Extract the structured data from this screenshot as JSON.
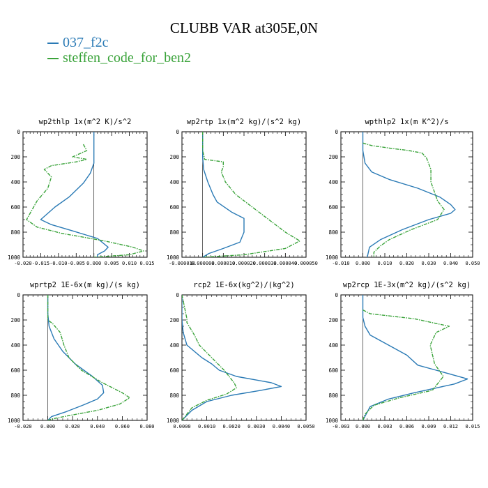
{
  "figure": {
    "title": "CLUBB VAR at305E,0N",
    "legend": [
      {
        "label": "037_f2c",
        "color": "#2a7ab5"
      },
      {
        "label": "steffen_code_for_ben2",
        "color": "#3aa33a"
      }
    ]
  },
  "chart_data": [
    {
      "type": "line",
      "title": "wp2thlp   1x(m^2 K)/s^2",
      "xlim": [
        -0.02,
        0.015
      ],
      "ylim": [
        1000,
        0
      ],
      "y_reversed": true,
      "xticks": [
        "-0.020",
        "-0.015",
        "-0.010",
        "-0.005",
        "0.000",
        "0.005",
        "0.010",
        "0.015"
      ],
      "xtick_values": [
        -0.02,
        -0.015,
        -0.01,
        -0.005,
        0.0,
        0.005,
        0.01,
        0.015
      ],
      "yticks": [
        "0",
        "200",
        "400",
        "600",
        "800",
        "1000"
      ],
      "ytick_values": [
        0,
        200,
        400,
        600,
        800,
        1000
      ],
      "series": [
        {
          "name": "037_f2c",
          "color": "#2a7ab5",
          "style": "solid",
          "points": [
            [
              0,
              0
            ],
            [
              0,
              100
            ],
            [
              0,
              250
            ],
            [
              -0.001,
              330
            ],
            [
              -0.003,
              410
            ],
            [
              -0.007,
              520
            ],
            [
              -0.011,
              600
            ],
            [
              -0.015,
              700
            ],
            [
              -0.012,
              740
            ],
            [
              -0.006,
              790
            ],
            [
              0.001,
              850
            ],
            [
              0.004,
              920
            ],
            [
              0.003,
              950
            ],
            [
              0.001,
              980
            ],
            [
              0.001,
              1000
            ]
          ]
        },
        {
          "name": "steffen_code_for_ben2",
          "color": "#3aa33a",
          "style": "dash",
          "points": [
            [
              -0.003,
              100
            ],
            [
              -0.002,
              150
            ],
            [
              -0.006,
              200
            ],
            [
              -0.002,
              220
            ],
            [
              -0.005,
              240
            ],
            [
              -0.012,
              270
            ],
            [
              -0.014,
              300
            ],
            [
              -0.012,
              360
            ],
            [
              -0.013,
              450
            ],
            [
              -0.016,
              550
            ],
            [
              -0.019,
              700
            ],
            [
              -0.016,
              760
            ],
            [
              -0.009,
              810
            ],
            [
              0.003,
              870
            ],
            [
              0.011,
              920
            ],
            [
              0.014,
              950
            ],
            [
              0.01,
              980
            ],
            [
              0,
              1000
            ]
          ]
        }
      ]
    },
    {
      "type": "line",
      "title": "wp2rtp   1x(m^2 kg)/(s^2 kg)",
      "xlim": [
        -1e-05,
        5e-05
      ],
      "ylim": [
        1000,
        0
      ],
      "y_reversed": true,
      "xticks": [
        "-0.000010",
        "0.000000",
        "0.000010",
        "0.000020",
        "0.000030",
        "0.000040",
        "0.000050"
      ],
      "xtick_values": [
        -1e-05,
        0.0,
        1e-05,
        2e-05,
        3e-05,
        4e-05,
        5e-05
      ],
      "yticks": [
        "0",
        "200",
        "400",
        "600",
        "800",
        "1000"
      ],
      "ytick_values": [
        0,
        200,
        400,
        600,
        800,
        1000
      ],
      "series": [
        {
          "name": "037_f2c",
          "color": "#2a7ab5",
          "style": "solid",
          "points": [
            [
              0.0,
              0
            ],
            [
              0.0,
              200
            ],
            [
              5e-07,
              300
            ],
            [
              2.5e-06,
              400
            ],
            [
              5e-06,
              500
            ],
            [
              7e-06,
              560
            ],
            [
              1.4e-05,
              640
            ],
            [
              2e-05,
              690
            ],
            [
              2e-05,
              800
            ],
            [
              1.8e-05,
              880
            ],
            [
              1e-05,
              930
            ],
            [
              3e-06,
              970
            ],
            [
              0.0,
              1000
            ]
          ]
        },
        {
          "name": "steffen_code_for_ben2",
          "color": "#3aa33a",
          "style": "dash",
          "points": [
            [
              0.0,
              0
            ],
            [
              0.0,
              150
            ],
            [
              1e-06,
              220
            ],
            [
              1e-05,
              240
            ],
            [
              1e-05,
              280
            ],
            [
              9e-06,
              320
            ],
            [
              1.1e-05,
              400
            ],
            [
              1.6e-05,
              500
            ],
            [
              2.8e-05,
              650
            ],
            [
              4e-05,
              800
            ],
            [
              4.7e-05,
              870
            ],
            [
              4e-05,
              930
            ],
            [
              2e-05,
              980
            ],
            [
              0.0,
              1000
            ]
          ]
        }
      ]
    },
    {
      "type": "line",
      "title": "wpthlp2   1x(m K^2)/s",
      "xlim": [
        -0.01,
        0.05
      ],
      "ylim": [
        1000,
        0
      ],
      "y_reversed": true,
      "xticks": [
        "-0.010",
        "0.000",
        "0.010",
        "0.020",
        "0.030",
        "0.040",
        "0.050"
      ],
      "xtick_values": [
        -0.01,
        0.0,
        0.01,
        0.02,
        0.03,
        0.04,
        0.05
      ],
      "yticks": [
        "0",
        "200",
        "400",
        "600",
        "800",
        "1000"
      ],
      "ytick_values": [
        0,
        200,
        400,
        600,
        800,
        1000
      ],
      "series": [
        {
          "name": "037_f2c",
          "color": "#2a7ab5",
          "style": "solid",
          "points": [
            [
              0,
              0
            ],
            [
              0,
              150
            ],
            [
              0.001,
              250
            ],
            [
              0.004,
              320
            ],
            [
              0.012,
              380
            ],
            [
              0.025,
              450
            ],
            [
              0.035,
              520
            ],
            [
              0.04,
              580
            ],
            [
              0.042,
              620
            ],
            [
              0.04,
              650
            ],
            [
              0.03,
              700
            ],
            [
              0.018,
              780
            ],
            [
              0.008,
              860
            ],
            [
              0.003,
              920
            ],
            [
              0.002,
              1000
            ]
          ]
        },
        {
          "name": "steffen_code_for_ben2",
          "color": "#3aa33a",
          "style": "dash",
          "points": [
            [
              0,
              90
            ],
            [
              0.004,
              110
            ],
            [
              0.012,
              130
            ],
            [
              0.021,
              150
            ],
            [
              0.027,
              170
            ],
            [
              0.029,
              210
            ],
            [
              0.031,
              300
            ],
            [
              0.031,
              400
            ],
            [
              0.034,
              550
            ],
            [
              0.037,
              620
            ],
            [
              0.034,
              700
            ],
            [
              0.022,
              780
            ],
            [
              0.012,
              860
            ],
            [
              0.008,
              910
            ],
            [
              0.005,
              960
            ],
            [
              0.005,
              1000
            ]
          ]
        }
      ]
    },
    {
      "type": "line",
      "title": "wprtp2   1E-6x(m kg)/(s kg)",
      "xlim": [
        -0.02,
        0.08
      ],
      "ylim": [
        1000,
        0
      ],
      "y_reversed": true,
      "xticks": [
        "-0.020",
        "0.000",
        "0.020",
        "0.040",
        "0.060",
        "0.080"
      ],
      "xtick_values": [
        -0.02,
        0.0,
        0.02,
        0.04,
        0.06,
        0.08
      ],
      "yticks": [
        "0",
        "200",
        "400",
        "600",
        "800",
        "1000"
      ],
      "ytick_values": [
        0,
        200,
        400,
        600,
        800,
        1000
      ],
      "series": [
        {
          "name": "037_f2c",
          "color": "#2a7ab5",
          "style": "solid",
          "points": [
            [
              0,
              0
            ],
            [
              0,
              150
            ],
            [
              0.001,
              250
            ],
            [
              0.005,
              350
            ],
            [
              0.012,
              450
            ],
            [
              0.022,
              550
            ],
            [
              0.036,
              650
            ],
            [
              0.044,
              720
            ],
            [
              0.045,
              780
            ],
            [
              0.04,
              830
            ],
            [
              0.028,
              880
            ],
            [
              0.015,
              930
            ],
            [
              0.003,
              970
            ],
            [
              0,
              1000
            ]
          ]
        },
        {
          "name": "steffen_code_for_ben2",
          "color": "#3aa33a",
          "style": "dash",
          "points": [
            [
              0,
              0
            ],
            [
              0,
              200
            ],
            [
              0.004,
              230
            ],
            [
              0.01,
              300
            ],
            [
              0.013,
              400
            ],
            [
              0.017,
              500
            ],
            [
              0.027,
              600
            ],
            [
              0.044,
              700
            ],
            [
              0.06,
              780
            ],
            [
              0.066,
              820
            ],
            [
              0.058,
              870
            ],
            [
              0.04,
              920
            ],
            [
              0.018,
              960
            ],
            [
              0.003,
              990
            ],
            [
              0,
              1000
            ]
          ]
        }
      ]
    },
    {
      "type": "line",
      "title": "rcp2   1E-6x(kg^2)/(kg^2)",
      "xlim": [
        0.0,
        0.005
      ],
      "ylim": [
        1000,
        0
      ],
      "y_reversed": true,
      "xticks": [
        "0.0000",
        "0.0010",
        "0.0020",
        "0.0030",
        "0.0040",
        "0.0050"
      ],
      "xtick_values": [
        0.0,
        0.001,
        0.002,
        0.003,
        0.004,
        0.005
      ],
      "yticks": [
        "0",
        "200",
        "400",
        "600",
        "800",
        "1000"
      ],
      "ytick_values": [
        0,
        200,
        400,
        600,
        800,
        1000
      ],
      "series": [
        {
          "name": "037_f2c",
          "color": "#2a7ab5",
          "style": "solid",
          "points": [
            [
              0,
              0
            ],
            [
              0,
              200
            ],
            [
              5e-05,
              300
            ],
            [
              0.0002,
              400
            ],
            [
              0.0008,
              500
            ],
            [
              0.0012,
              550
            ],
            [
              0.0015,
              600
            ],
            [
              0.0022,
              650
            ],
            [
              0.0036,
              700
            ],
            [
              0.004,
              730
            ],
            [
              0.0032,
              760
            ],
            [
              0.002,
              800
            ],
            [
              0.001,
              850
            ],
            [
              0.0004,
              920
            ],
            [
              0,
              1000
            ]
          ]
        },
        {
          "name": "steffen_code_for_ben2",
          "color": "#3aa33a",
          "style": "dash",
          "points": [
            [
              0,
              0
            ],
            [
              0.0002,
              190
            ],
            [
              0.0002,
              220
            ],
            [
              0.0005,
              320
            ],
            [
              0.0007,
              400
            ],
            [
              0.0012,
              500
            ],
            [
              0.0017,
              600
            ],
            [
              0.0021,
              700
            ],
            [
              0.0022,
              740
            ],
            [
              0.0018,
              790
            ],
            [
              0.001,
              840
            ],
            [
              0.0004,
              900
            ],
            [
              0,
              1000
            ]
          ]
        }
      ]
    },
    {
      "type": "line",
      "title": "wp2rcp   1E-3x(m^2 kg)/(s^2 kg)",
      "xlim": [
        -0.003,
        0.015
      ],
      "ylim": [
        1000,
        0
      ],
      "y_reversed": true,
      "xticks": [
        "-0.003",
        "0.000",
        "0.003",
        "0.006",
        "0.009",
        "0.012",
        "0.015"
      ],
      "xtick_values": [
        -0.003,
        0.0,
        0.003,
        0.006,
        0.009,
        0.012,
        0.015
      ],
      "yticks": [
        "0",
        "200",
        "400",
        "600",
        "800",
        "1000"
      ],
      "ytick_values": [
        0,
        200,
        400,
        600,
        800,
        1000
      ],
      "series": [
        {
          "name": "037_f2c",
          "color": "#2a7ab5",
          "style": "solid",
          "points": [
            [
              0,
              0
            ],
            [
              0,
              180
            ],
            [
              0.0003,
              250
            ],
            [
              0.001,
              320
            ],
            [
              0.0035,
              400
            ],
            [
              0.006,
              480
            ],
            [
              0.0075,
              560
            ],
            [
              0.01,
              600
            ],
            [
              0.0143,
              670
            ],
            [
              0.0125,
              710
            ],
            [
              0.007,
              780
            ],
            [
              0.0035,
              830
            ],
            [
              0.001,
              890
            ],
            [
              0,
              1000
            ]
          ]
        },
        {
          "name": "steffen_code_for_ben2",
          "color": "#3aa33a",
          "style": "dash",
          "points": [
            [
              0,
              120
            ],
            [
              0.001,
              150
            ],
            [
              0.007,
              190
            ],
            [
              0.0118,
              250
            ],
            [
              0.01,
              300
            ],
            [
              0.0092,
              400
            ],
            [
              0.0098,
              550
            ],
            [
              0.011,
              650
            ],
            [
              0.0095,
              760
            ],
            [
              0.005,
              820
            ],
            [
              0.0015,
              880
            ],
            [
              0.0003,
              950
            ],
            [
              0,
              1000
            ]
          ]
        }
      ]
    }
  ]
}
